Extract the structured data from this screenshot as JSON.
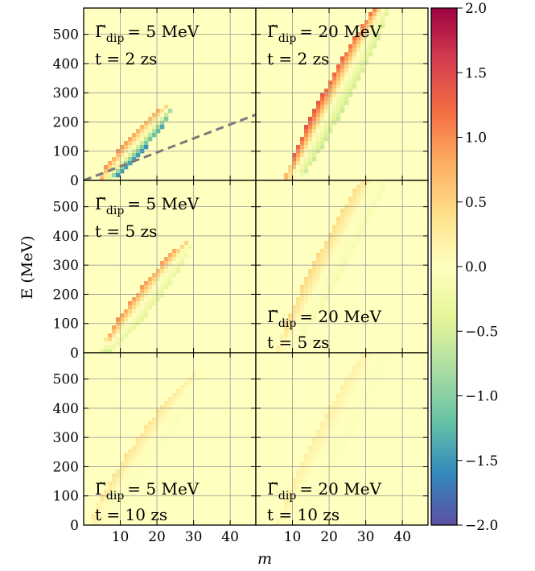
{
  "chart_data": {
    "type": "heatmap",
    "title": "",
    "xlabel": "m",
    "ylabel": "E (MeV)",
    "xlim": [
      0,
      47
    ],
    "ylim": [
      0,
      590
    ],
    "xticks": [
      10,
      20,
      30,
      40
    ],
    "yticks": [
      0,
      100,
      200,
      300,
      400,
      500
    ],
    "grid": true,
    "colorbar": {
      "colormap": "Spectral_r",
      "range": [
        -2.0,
        2.0
      ],
      "ticks": [
        "2.0",
        "1.5",
        "1.0",
        "0.5",
        "0.0",
        "−0.5",
        "−1.0",
        "−1.5",
        "−2.0"
      ],
      "tick_values": [
        2.0,
        1.5,
        1.0,
        0.5,
        0.0,
        -0.5,
        -1.0,
        -1.5,
        -2.0
      ]
    },
    "panels": [
      {
        "row": 0,
        "col": 0,
        "gamma_text": "= 5 MeV",
        "time_text": "t = 2 zs",
        "label_position": "top-left",
        "region": {
          "center": [
            14,
            120
          ],
          "half_len": 12,
          "half_width": 55,
          "angle_deg": 48
        },
        "values": {
          "upper_edge": 1.0,
          "lower_edge": -1.6,
          "low_end": 2.0
        },
        "dashed_line": {
          "x": [
            0,
            47
          ],
          "y": [
            0,
            225
          ]
        }
      },
      {
        "row": 0,
        "col": 1,
        "gamma_text": "= 20 MeV",
        "time_text": "t = 2 zs",
        "label_position": "top-left",
        "region": {
          "center": [
            22,
            290
          ],
          "half_len": 19,
          "half_width": 75,
          "angle_deg": 62
        },
        "values": {
          "upper_edge": 1.4,
          "lower_edge": -0.6,
          "low_end": 0.6
        }
      },
      {
        "row": 1,
        "col": 0,
        "gamma_text": "= 5 MeV",
        "time_text": "t = 5 zs",
        "label_position": "top-left",
        "region": {
          "center": [
            17,
            185
          ],
          "half_len": 15,
          "half_width": 62,
          "angle_deg": 52
        },
        "values": {
          "upper_edge": 1.0,
          "lower_edge": -0.4,
          "low_end": -1.0
        }
      },
      {
        "row": 1,
        "col": 1,
        "gamma_text": "= 20 MeV",
        "time_text": "t = 5 zs",
        "label_position": "bottom-left",
        "region": {
          "center": [
            22,
            345
          ],
          "half_len": 22,
          "half_width": 85,
          "angle_deg": 62
        },
        "values": {
          "upper_edge": 0.45,
          "lower_edge": -0.15,
          "low_end": 0.1
        }
      },
      {
        "row": 2,
        "col": 0,
        "gamma_text": "= 5 MeV",
        "time_text": "t = 10 zs",
        "label_position": "bottom-left",
        "region": {
          "center": [
            17,
            260
          ],
          "half_len": 18,
          "half_width": 75,
          "angle_deg": 55
        },
        "values": {
          "upper_edge": 0.35,
          "lower_edge": -0.05,
          "low_end": 0.2
        }
      },
      {
        "row": 2,
        "col": 1,
        "gamma_text": "= 20 MeV",
        "time_text": "t = 10 zs",
        "label_position": "bottom-left",
        "region": {
          "center": [
            22,
            330
          ],
          "half_len": 22,
          "half_width": 90,
          "angle_deg": 62
        },
        "values": {
          "upper_edge": 0.2,
          "lower_edge": -0.05,
          "low_end": 0.1
        }
      }
    ]
  }
}
